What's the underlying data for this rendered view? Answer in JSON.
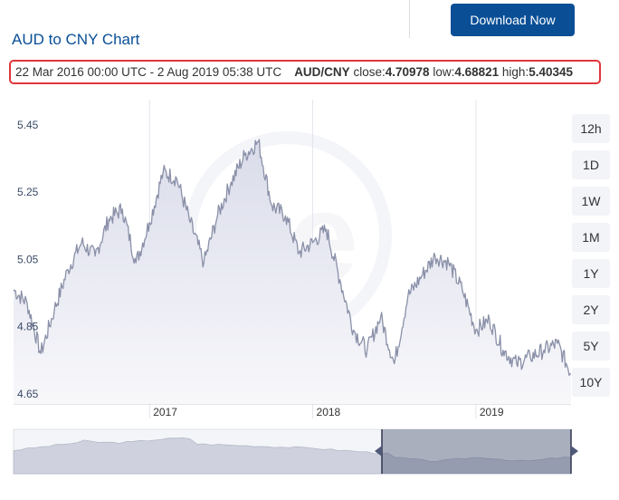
{
  "header": {
    "download_label": "Download Now",
    "title": "AUD to CNY Chart"
  },
  "summary": {
    "range": "22 Mar 2016 00:00 UTC - 2 Aug 2019 05:38 UTC",
    "pair": "AUD/CNY",
    "close_label": "close:",
    "close": "4.70978",
    "low_label": "low:",
    "low": "4.68821",
    "high_label": "high:",
    "high": "5.40345"
  },
  "timeframes": [
    "12h",
    "1D",
    "1W",
    "1M",
    "1Y",
    "2Y",
    "5Y",
    "10Y"
  ],
  "colors": {
    "brand": "#0a4f96",
    "highlight": "#e0363c",
    "line": "#8a90a8",
    "fill": "#e8eaf2",
    "navigator_selected": "#505a78"
  },
  "chart_data": {
    "type": "area",
    "title": "AUD to CNY Chart",
    "series": [
      {
        "name": "AUD/CNY",
        "x": [
          "2016-03",
          "2016-04",
          "2016-05",
          "2016-06",
          "2016-07",
          "2016-08",
          "2016-09",
          "2016-10",
          "2016-11",
          "2016-12",
          "2017-01",
          "2017-02",
          "2017-03",
          "2017-04",
          "2017-05",
          "2017-06",
          "2017-07",
          "2017-08",
          "2017-09",
          "2017-10",
          "2017-11",
          "2017-12",
          "2018-01",
          "2018-02",
          "2018-03",
          "2018-04",
          "2018-05",
          "2018-06",
          "2018-07",
          "2018-08",
          "2018-09",
          "2018-10",
          "2018-11",
          "2018-12",
          "2019-01",
          "2019-02",
          "2019-03",
          "2019-04",
          "2019-05",
          "2019-06",
          "2019-07",
          "2019-08"
        ],
        "values": [
          4.96,
          4.92,
          4.77,
          4.9,
          5.02,
          5.1,
          5.06,
          5.17,
          5.2,
          5.04,
          5.16,
          5.31,
          5.29,
          5.16,
          5.04,
          5.18,
          5.28,
          5.36,
          5.4,
          5.21,
          5.18,
          5.07,
          5.1,
          5.14,
          4.99,
          4.84,
          4.78,
          4.88,
          4.74,
          4.94,
          5.0,
          5.06,
          5.04,
          4.96,
          4.84,
          4.87,
          4.78,
          4.74,
          4.76,
          4.78,
          4.8,
          4.71
        ]
      }
    ],
    "ylim": [
      4.62,
      5.52
    ],
    "yticks": [
      "5.45",
      "5.25",
      "5.05",
      "4.85",
      "4.65"
    ],
    "xticks": [
      "2017",
      "2018",
      "2019"
    ],
    "xticks_month_index": [
      10,
      22,
      34
    ],
    "navigator": {
      "selected_range": [
        "2016-03-22",
        "2019-08-02"
      ]
    }
  }
}
